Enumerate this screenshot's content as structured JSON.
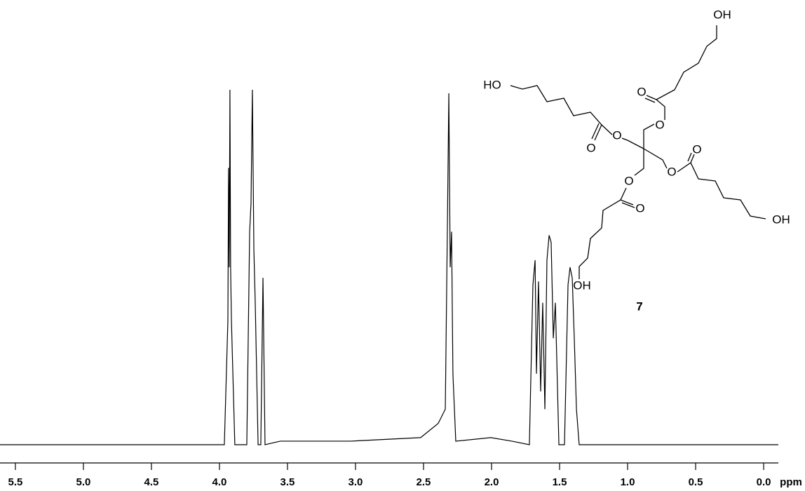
{
  "chart_data": {
    "type": "line",
    "xlabel": "ppm",
    "reverse_x": true,
    "color": "#000000",
    "x": [
      5.613,
      3.964,
      3.938,
      3.933,
      3.928,
      3.923,
      3.918,
      3.912,
      3.887,
      3.799,
      3.778,
      3.768,
      3.758,
      3.747,
      3.737,
      3.716,
      3.696,
      3.68,
      3.665,
      3.552,
      3.036,
      2.521,
      2.392,
      2.34,
      2.325,
      2.314,
      2.304,
      2.294,
      2.284,
      2.263,
      2.005,
      1.851,
      1.722,
      1.696,
      1.68,
      1.67,
      1.655,
      1.639,
      1.624,
      1.608,
      1.593,
      1.577,
      1.562,
      1.546,
      1.531,
      1.505,
      1.464,
      1.438,
      1.423,
      1.407,
      1.392,
      1.376,
      1.356,
      -0.108
    ],
    "values": [
      0,
      0,
      35,
      78,
      50,
      100,
      50,
      35,
      0,
      0,
      60,
      68,
      100,
      55,
      40,
      0,
      0,
      47,
      0,
      1,
      1,
      2,
      6,
      10,
      60,
      99,
      50,
      60,
      20,
      1,
      2,
      1,
      0,
      45,
      52,
      20,
      46,
      15,
      40,
      10,
      52,
      59,
      57,
      30,
      40,
      0,
      0,
      45,
      50,
      47,
      30,
      10,
      0,
      0
    ],
    "xlim": [
      5.613,
      -0.108
    ],
    "ylim": [
      0,
      100
    ],
    "xticks": [
      5.5,
      {
        "value": 5,
        "label": "5.0"
      },
      4.5,
      {
        "value": 4,
        "label": "4.0"
      },
      3.5,
      {
        "value": 3,
        "label": "3.0"
      },
      2.5,
      {
        "value": 2,
        "label": "2.0"
      },
      1.5,
      {
        "value": 1,
        "label": "1.0"
      },
      0.5,
      {
        "value": 0,
        "label": "0.0"
      }
    ],
    "structure": {
      "labels": [
        "OH",
        "O",
        "O",
        "HO",
        "O",
        "O",
        "O",
        "O",
        "OH",
        "O",
        "O",
        "OH",
        "7"
      ]
    }
  }
}
